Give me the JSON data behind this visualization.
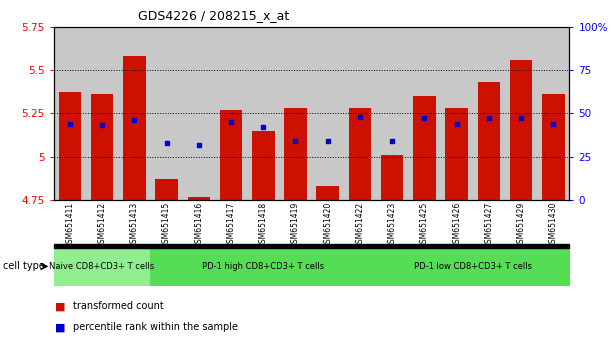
{
  "title": "GDS4226 / 208215_x_at",
  "samples": [
    "GSM651411",
    "GSM651412",
    "GSM651413",
    "GSM651415",
    "GSM651416",
    "GSM651417",
    "GSM651418",
    "GSM651419",
    "GSM651420",
    "GSM651422",
    "GSM651423",
    "GSM651425",
    "GSM651426",
    "GSM651427",
    "GSM651429",
    "GSM651430"
  ],
  "red_values": [
    5.37,
    5.36,
    5.58,
    4.87,
    4.77,
    5.27,
    5.15,
    5.28,
    4.83,
    5.28,
    5.01,
    5.35,
    5.28,
    5.43,
    5.56,
    5.36
  ],
  "blue_pcts": [
    44,
    43,
    46,
    33,
    32,
    45,
    42,
    34,
    34,
    48,
    34,
    47,
    44,
    47,
    47,
    44
  ],
  "ylim_left": [
    4.75,
    5.75
  ],
  "ylim_right": [
    0,
    100
  ],
  "yticks_left": [
    4.75,
    5.0,
    5.25,
    5.5,
    5.75
  ],
  "ytick_labels_left": [
    "4.75",
    "5",
    "5.25",
    "5.5",
    "5.75"
  ],
  "yticks_right": [
    0,
    25,
    50,
    75,
    100
  ],
  "ytick_labels_right": [
    "0",
    "25",
    "50",
    "75",
    "100%"
  ],
  "groups": [
    {
      "label": "Naive CD8+CD3+ T cells",
      "start": 0,
      "end": 3,
      "color": "#90EE90"
    },
    {
      "label": "PD-1 high CD8+CD3+ T cells",
      "start": 3,
      "end": 10,
      "color": "#55DD55"
    },
    {
      "label": "PD-1 low CD8+CD3+ T cells",
      "start": 10,
      "end": 16,
      "color": "#55DD55"
    }
  ],
  "cell_type_label": "cell type",
  "legend_red_label": "transformed count",
  "legend_blue_label": "percentile rank within the sample",
  "bar_color": "#CC1100",
  "dot_color": "#0000CC",
  "base_value": 4.75,
  "bar_width": 0.7,
  "col_bg_color": "#C8C8C8"
}
